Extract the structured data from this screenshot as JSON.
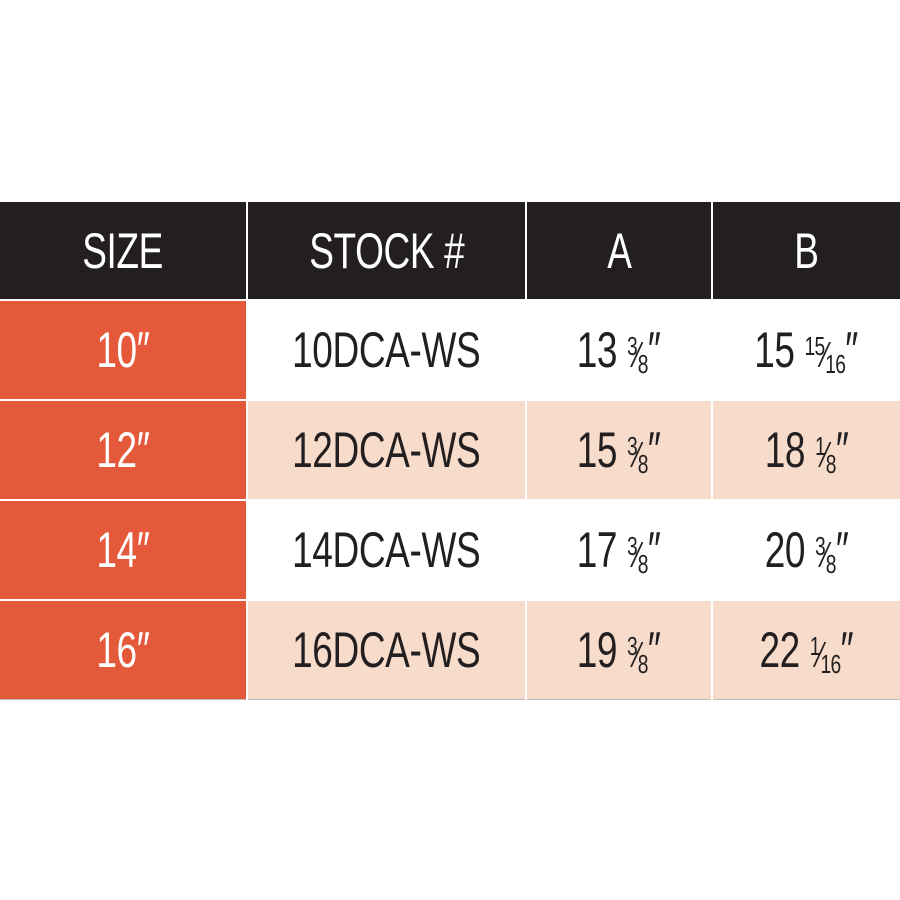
{
  "colors": {
    "header_bg": "#231f20",
    "size_bg": "#e4593a",
    "alt_row_bg": "#f7dccc"
  },
  "headers": [
    "SIZE",
    "STOCK #",
    "A",
    "B"
  ],
  "rows": [
    {
      "size": "10″",
      "stock": "10DCA-WS",
      "a": {
        "whole": "13",
        "num": "3",
        "den": "8",
        "unit": "″"
      },
      "b": {
        "whole": "15",
        "num": "15",
        "den": "16",
        "unit": "″"
      }
    },
    {
      "size": "12″",
      "stock": "12DCA-WS",
      "a": {
        "whole": "15",
        "num": "3",
        "den": "8",
        "unit": "″"
      },
      "b": {
        "whole": "18",
        "num": "1",
        "den": "8",
        "unit": "″"
      }
    },
    {
      "size": "14″",
      "stock": "14DCA-WS",
      "a": {
        "whole": "17",
        "num": "3",
        "den": "8",
        "unit": "″"
      },
      "b": {
        "whole": "20",
        "num": "3",
        "den": "8",
        "unit": "″"
      }
    },
    {
      "size": "16″",
      "stock": "16DCA-WS",
      "a": {
        "whole": "19",
        "num": "3",
        "den": "8",
        "unit": "″"
      },
      "b": {
        "whole": "22",
        "num": "1",
        "den": "16",
        "unit": "″"
      }
    }
  ]
}
